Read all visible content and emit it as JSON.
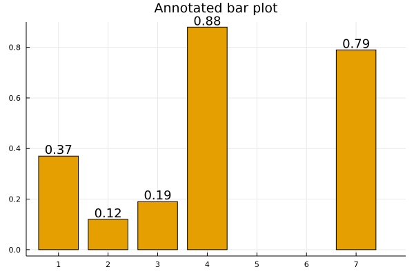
{
  "chart_data": {
    "type": "bar",
    "title": "Annotated bar plot",
    "xlabel": "",
    "ylabel": "",
    "x": [
      1,
      2,
      3,
      4,
      5,
      6,
      7
    ],
    "values": [
      0.37,
      0.12,
      0.19,
      0.88,
      null,
      null,
      0.79
    ],
    "data_labels": [
      "0.37",
      "0.12",
      "0.19",
      "0.88",
      "",
      "",
      "0.79"
    ],
    "x_ticks": [
      "1",
      "2",
      "3",
      "4",
      "5",
      "6",
      "7"
    ],
    "y_ticks": [
      0.0,
      0.2,
      0.4,
      0.6,
      0.8
    ],
    "y_tick_labels": [
      "0.0",
      "0.2",
      "0.4",
      "0.6",
      "0.8"
    ],
    "xlim": [
      0.35,
      8.0
    ],
    "ylim": [
      -0.025,
      0.9
    ],
    "grid": true,
    "legend": "none",
    "bar_color": "#e69f00"
  }
}
